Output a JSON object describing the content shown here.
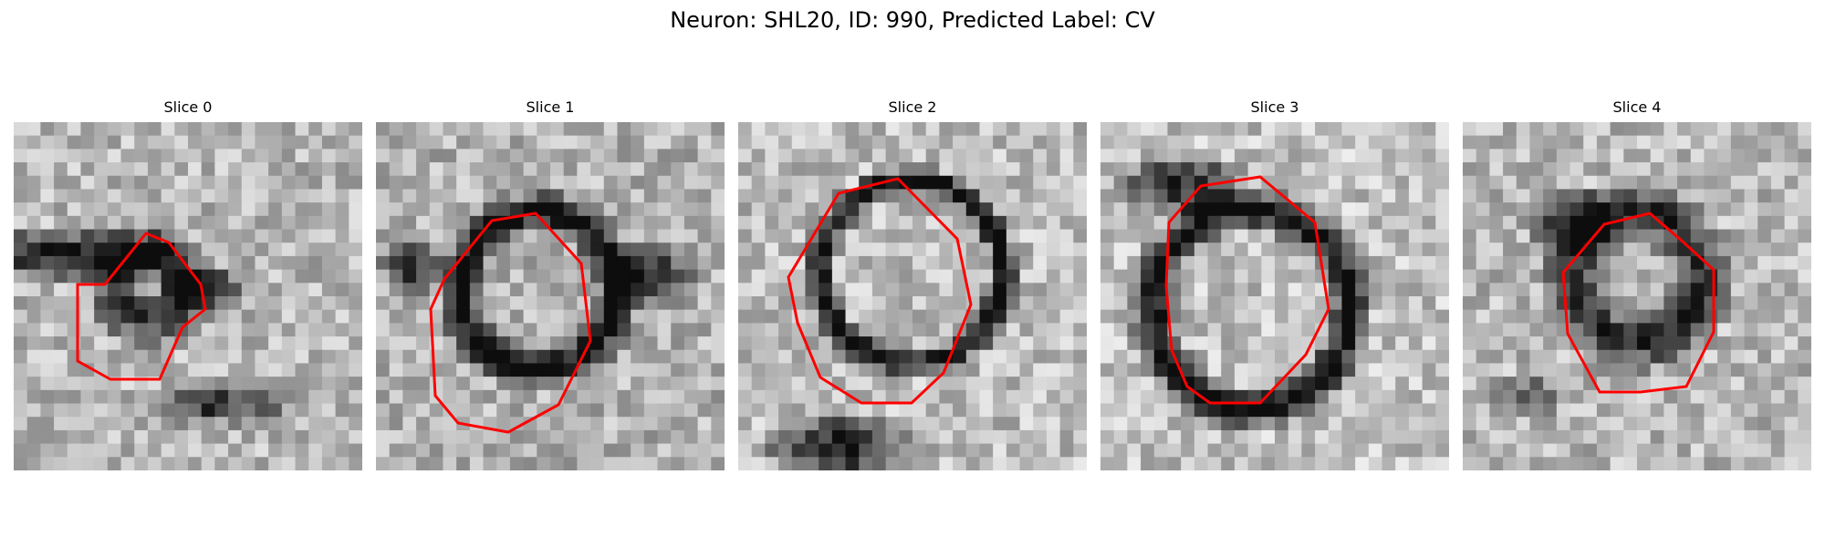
{
  "figure": {
    "title": "Neuron: SHL20, ID: 990, Predicted Label: CV",
    "contour_color": "#ff0000"
  },
  "panels": [
    {
      "title": "Slice 0"
    },
    {
      "title": "Slice 1"
    },
    {
      "title": "Slice 2"
    },
    {
      "title": "Slice 3"
    },
    {
      "title": "Slice 4"
    }
  ]
}
